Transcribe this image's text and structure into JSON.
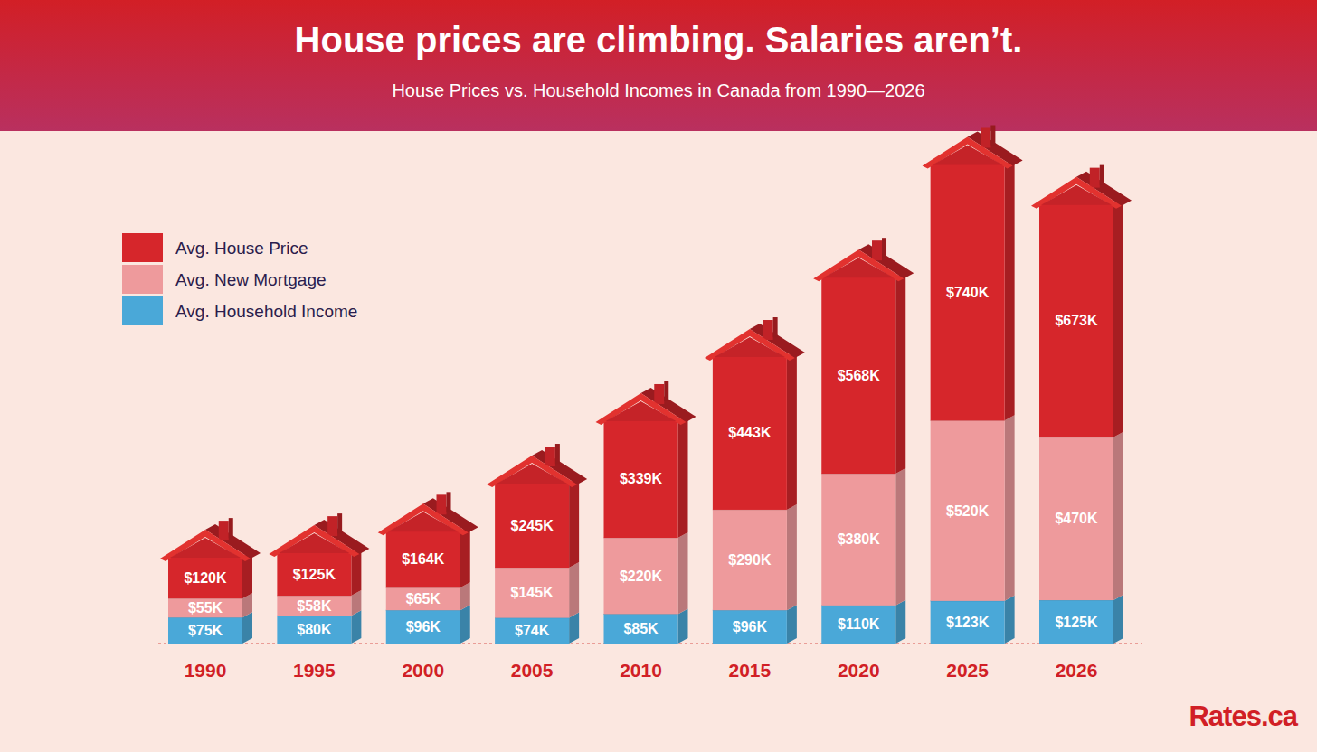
{
  "chart_data": {
    "type": "bar",
    "title": "House prices are climbing. Salaries aren’t.",
    "subtitle": "House Prices vs. Household Incomes in Canada from 1990—2026",
    "source": "Rates.ca",
    "categories": [
      "1990",
      "1995",
      "2000",
      "2005",
      "2010",
      "2015",
      "2020",
      "2025",
      "2026"
    ],
    "series": [
      {
        "name": "Avg. House Price",
        "color": "#d6262b",
        "values": [
          120,
          125,
          164,
          245,
          339,
          443,
          568,
          740,
          673
        ],
        "value_labels": [
          "$120K",
          "$125K",
          "$164K",
          "$245K",
          "$339K",
          "$443K",
          "$568K",
          "$740K",
          "$673K"
        ]
      },
      {
        "name": "Avg. New Mortgage",
        "color": "#ee9a9c",
        "values": [
          55,
          58,
          65,
          145,
          220,
          290,
          380,
          520,
          470
        ],
        "value_labels": [
          "$55K",
          "$58K",
          "$65K",
          "$145K",
          "$220K",
          "$290K",
          "$380K",
          "$520K",
          "$470K"
        ]
      },
      {
        "name": "Avg. Household Income",
        "color": "#4aa8d8",
        "values": [
          75,
          80,
          96,
          74,
          85,
          96,
          110,
          123,
          125
        ],
        "value_labels": [
          "$75K",
          "$80K",
          "$96K",
          "$74K",
          "$85K",
          "$96K",
          "$110K",
          "$123K",
          "$125K"
        ]
      }
    ],
    "ylim": [
      0,
      1400
    ],
    "stacked": true,
    "data_labels": true,
    "grid": false,
    "legend": "top-left",
    "tick_labels": "x"
  }
}
